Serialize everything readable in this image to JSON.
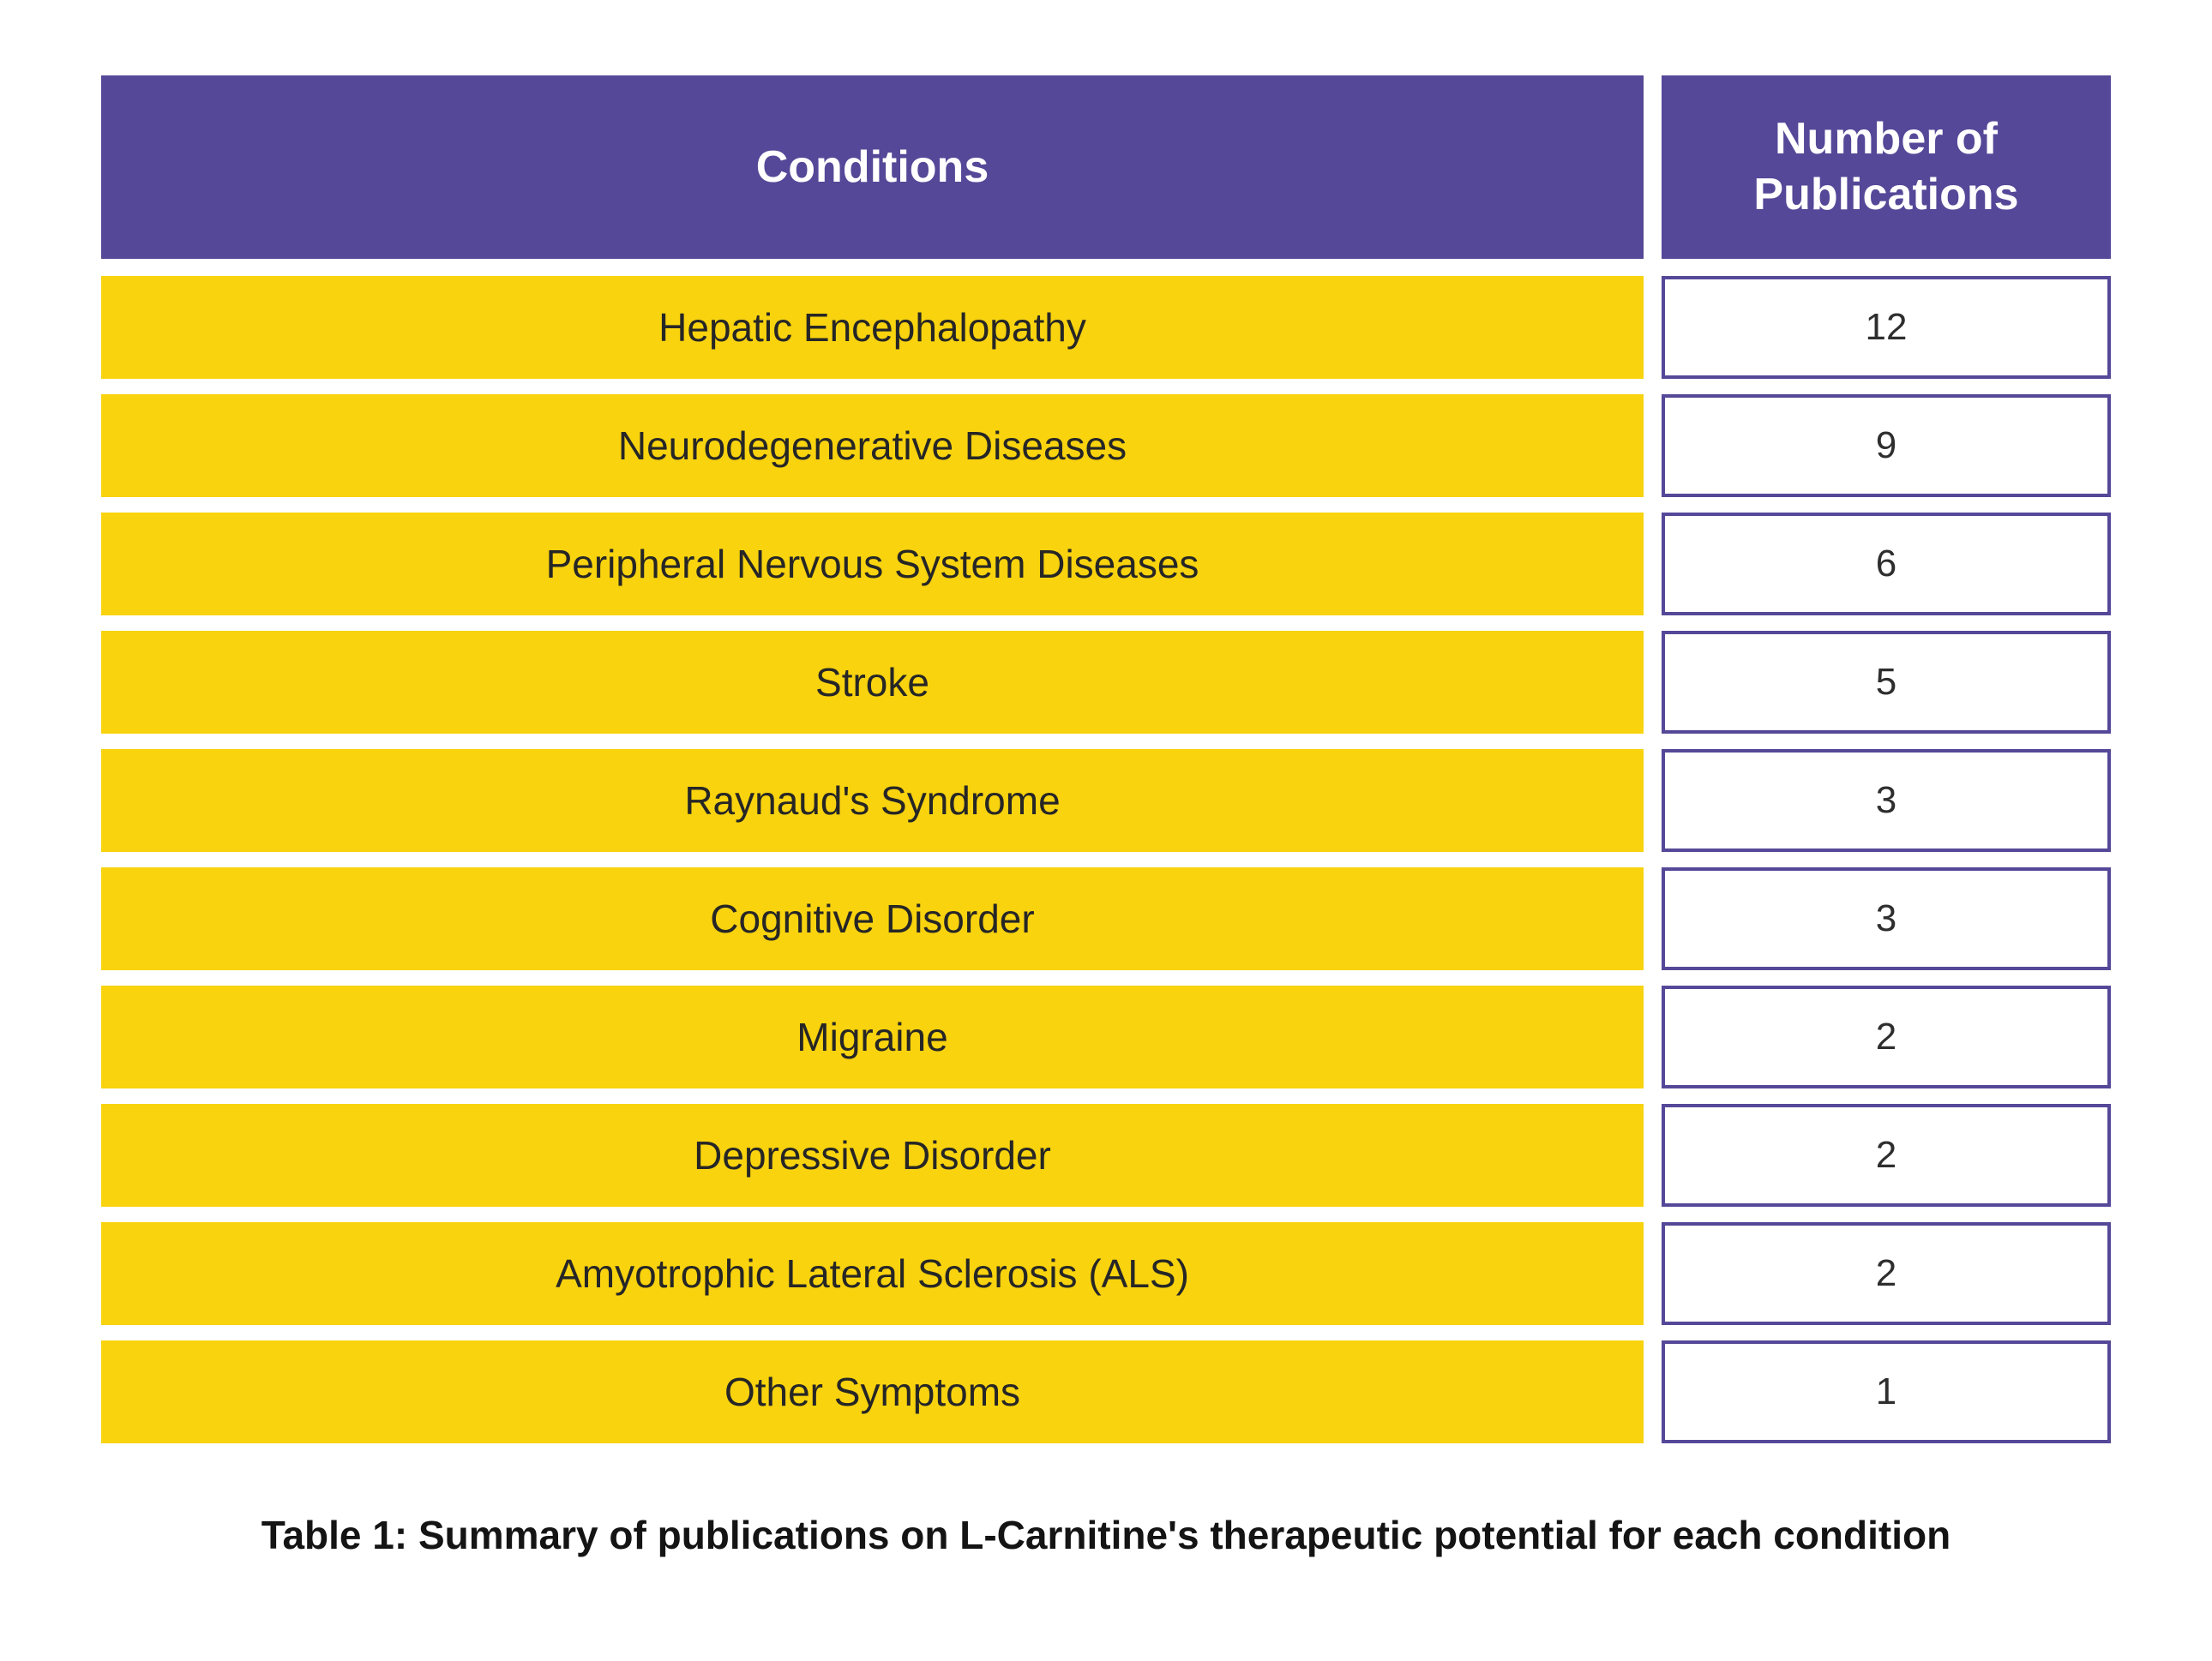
{
  "table": {
    "headers": {
      "conditions": "Conditions",
      "publications": "Number of Publications"
    },
    "rows": [
      {
        "condition": "Hepatic Encephalopathy",
        "publications": "12"
      },
      {
        "condition": "Neurodegenerative Diseases",
        "publications": "9"
      },
      {
        "condition": "Peripheral Nervous System Diseases",
        "publications": "6"
      },
      {
        "condition": "Stroke",
        "publications": "5"
      },
      {
        "condition": "Raynaud's Syndrome",
        "publications": "3"
      },
      {
        "condition": "Cognitive Disorder",
        "publications": "3"
      },
      {
        "condition": "Migraine",
        "publications": "2"
      },
      {
        "condition": "Depressive Disorder",
        "publications": "2"
      },
      {
        "condition": "Amyotrophic Lateral Sclerosis (ALS)",
        "publications": "2"
      },
      {
        "condition": "Other Symptoms",
        "publications": "1"
      }
    ]
  },
  "caption": "Table 1: Summary of publications on L-Carnitine's therapeutic potential for each condition",
  "colors": {
    "header_purple": "#554898",
    "row_yellow": "#F8D30E",
    "number_box_border": "#554898",
    "row_text": "#262626",
    "caption_text": "#141414"
  },
  "chart_data": {
    "type": "table",
    "title": "Table 1: Summary of publications on L-Carnitine's therapeutic potential for each condition",
    "columns": [
      "Conditions",
      "Number of Publications"
    ],
    "categories": [
      "Hepatic Encephalopathy",
      "Neurodegenerative Diseases",
      "Peripheral Nervous System Diseases",
      "Stroke",
      "Raynaud's Syndrome",
      "Cognitive Disorder",
      "Migraine",
      "Depressive Disorder",
      "Amyotrophic Lateral Sclerosis (ALS)",
      "Other Symptoms"
    ],
    "values": [
      12,
      9,
      6,
      5,
      3,
      3,
      2,
      2,
      2,
      1
    ]
  }
}
